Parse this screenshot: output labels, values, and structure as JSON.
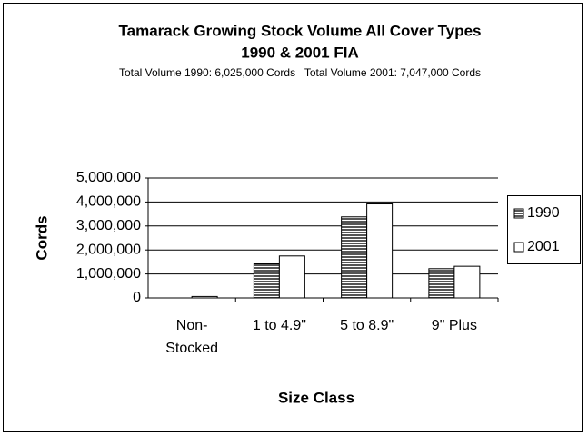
{
  "chart_data": {
    "type": "bar",
    "title": "Tamarack Growing Stock Volume All Cover Types",
    "subtitle": "1990 & 2001 FIA",
    "annotation": "Total Volume 1990: 6,025,000 Cords   Total Volume 2001: 7,047,000 Cords",
    "x_label": "Size Class",
    "y_label": "Cords",
    "categories": [
      "Non-Stocked",
      "1 to 4.9\"",
      "5 to 8.9\"",
      "9\" Plus"
    ],
    "series": [
      {
        "name": "1990",
        "color": "#808080",
        "values": [
          0,
          1420000,
          3380000,
          1220000
        ]
      },
      {
        "name": "2001",
        "color": "#ffffff",
        "values": [
          60000,
          1750000,
          3920000,
          1320000
        ]
      }
    ],
    "ylim": [
      0,
      5000000
    ],
    "yticks": [
      0,
      {
        "value": 1000000,
        "label": "1,000,000"
      },
      {
        "value": 2000000,
        "label": "2,000,000"
      },
      {
        "value": 3000000,
        "label": "3,000,000"
      },
      {
        "value": 4000000,
        "label": "4,000,000"
      },
      {
        "value": 5000000,
        "label": "5,000,000"
      }
    ],
    "grid": true,
    "legend": "right"
  }
}
